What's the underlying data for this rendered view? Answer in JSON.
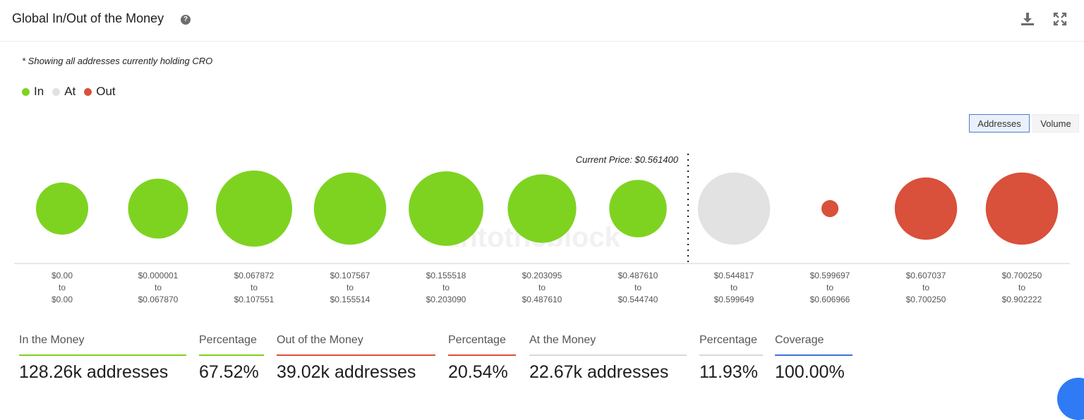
{
  "header": {
    "title": "Global In/Out of the Money",
    "help_icon": "question-circle-icon",
    "download_icon": "download-icon",
    "fullscreen_icon": "expand-icon"
  },
  "note": "* Showing all addresses currently holding CRO",
  "legend": [
    {
      "label": "In",
      "color": "#7ed321"
    },
    {
      "label": "At",
      "color": "#e2e2e2"
    },
    {
      "label": "Out",
      "color": "#d9503b"
    }
  ],
  "toggles": {
    "addresses": "Addresses",
    "volume": "Volume",
    "selected": "Addresses"
  },
  "chart_data": {
    "type": "bubble",
    "current_price_label": "Current Price: $0.561400",
    "current_price": 0.5614,
    "colors": {
      "in": "#7ed321",
      "at": "#e2e2e2",
      "out": "#d9503b"
    },
    "watermark": "intotheblock",
    "buckets": [
      {
        "from": "$0.00",
        "to": "$0.00",
        "status": "in",
        "size": 0.47
      },
      {
        "from": "$0.000001",
        "to": "$0.067870",
        "status": "in",
        "size": 0.62
      },
      {
        "from": "$0.067872",
        "to": "$0.107551",
        "status": "in",
        "size": 1.0
      },
      {
        "from": "$0.107567",
        "to": "$0.155514",
        "status": "in",
        "size": 0.9
      },
      {
        "from": "$0.155518",
        "to": "$0.203090",
        "status": "in",
        "size": 0.96
      },
      {
        "from": "$0.203095",
        "to": "$0.487610",
        "status": "in",
        "size": 0.81
      },
      {
        "from": "$0.487610",
        "to": "$0.544740",
        "status": "in",
        "size": 0.57
      },
      {
        "from": "$0.544817",
        "to": "$0.599649",
        "status": "at",
        "size": 0.9
      },
      {
        "from": "$0.599697",
        "to": "$0.606966",
        "status": "out",
        "size": 0.05
      },
      {
        "from": "$0.607037",
        "to": "$0.700250",
        "status": "out",
        "size": 0.67
      },
      {
        "from": "$0.700250",
        "to": "$0.902222",
        "status": "out",
        "size": 0.9
      }
    ],
    "to_word": "to"
  },
  "stats": {
    "in_label": "In the Money",
    "in_value": "128.26k addresses",
    "in_pct_label": "Percentage",
    "in_pct_value": "67.52%",
    "out_label": "Out of the Money",
    "out_value": "39.02k addresses",
    "out_pct_label": "Percentage",
    "out_pct_value": "20.54%",
    "at_label": "At the Money",
    "at_value": "22.67k addresses",
    "at_pct_label": "Percentage",
    "at_pct_value": "11.93%",
    "coverage_label": "Coverage",
    "coverage_value": "100.00%"
  }
}
